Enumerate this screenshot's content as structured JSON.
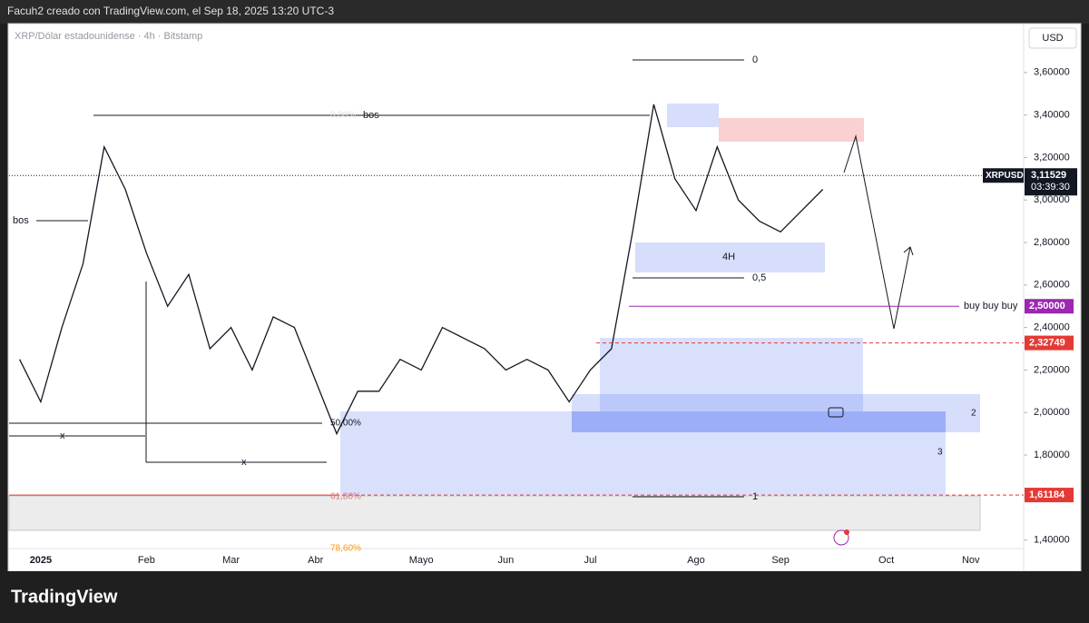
{
  "header": {
    "credit": "Facuh2 creado con TradingView.com, el Sep 18, 2025 13:20 UTC-3"
  },
  "footer": {
    "brand": "TradingView"
  },
  "chart_data": {
    "type": "line",
    "title": "XRP/Dólar estadounidense · 4h · Bitstamp",
    "currency": "USD",
    "categories": [
      null,
      "2025",
      null,
      null,
      null,
      null,
      "Feb",
      null,
      null,
      null,
      "Mar",
      null,
      null,
      null,
      "Abr",
      null,
      null,
      null,
      null,
      "Mayo",
      null,
      null,
      null,
      "Jun",
      null,
      null,
      null,
      "Jul",
      null,
      null,
      null,
      null,
      "Ago",
      null,
      null,
      null,
      "Sep",
      null,
      null,
      null,
      null,
      "Oct",
      null,
      null,
      null,
      "Nov",
      null,
      null
    ],
    "series": [
      {
        "name": "XRPUSD",
        "color": "#131722",
        "values": [
          2.25,
          2.05,
          2.4,
          2.7,
          3.25,
          3.05,
          2.75,
          2.5,
          2.65,
          2.3,
          2.4,
          2.2,
          2.45,
          2.4,
          2.15,
          1.9,
          2.1,
          2.1,
          2.25,
          2.2,
          2.4,
          2.35,
          2.3,
          2.2,
          2.25,
          2.2,
          2.05,
          2.2,
          2.3,
          2.85,
          3.45,
          3.1,
          2.95,
          3.25,
          3.0,
          2.9,
          2.85,
          2.95,
          3.05,
          null,
          null,
          null,
          null,
          null,
          null,
          null,
          null,
          null
        ]
      }
    ],
    "last_price": {
      "value": 3.11529,
      "label": "3,11529",
      "time_left": "03:39:30"
    },
    "levels": [
      {
        "value": 2.5,
        "label": "2,50000",
        "name": "buy buy buy",
        "color": "#9c27b0",
        "style": "solid"
      },
      {
        "value": 2.32749,
        "label": "2,32749",
        "color": "#e53935",
        "style": "dashed"
      },
      {
        "value": 1.61184,
        "label": "1,61184",
        "color": "#e53935",
        "style": "dashed"
      }
    ],
    "ylim": [
      1.36,
      3.83
    ],
    "yticks": [
      {
        "value": 1.4,
        "label": "1,40000"
      },
      {
        "value": 1.6,
        "label": "1,60000"
      },
      {
        "value": 1.8,
        "label": "1,80000"
      },
      {
        "value": 2.0,
        "label": "2,00000"
      },
      {
        "value": 2.2,
        "label": "2,20000"
      },
      {
        "value": 2.4,
        "label": "2,40000"
      },
      {
        "value": 2.6,
        "label": "2,60000"
      },
      {
        "value": 2.8,
        "label": "2,80000"
      },
      {
        "value": 3.0,
        "label": "3,00000"
      },
      {
        "value": 3.2,
        "label": "3,20000"
      },
      {
        "value": 3.4,
        "label": "3,40000"
      },
      {
        "value": 3.6,
        "label": "3,60000"
      }
    ],
    "grid": false,
    "annotations": [
      "bos",
      "bos",
      "x",
      "x",
      "0",
      "0,5",
      "1",
      "4H",
      "2",
      "3",
      "50,00%",
      "61,80%",
      "78,60%",
      "0,00%"
    ]
  }
}
